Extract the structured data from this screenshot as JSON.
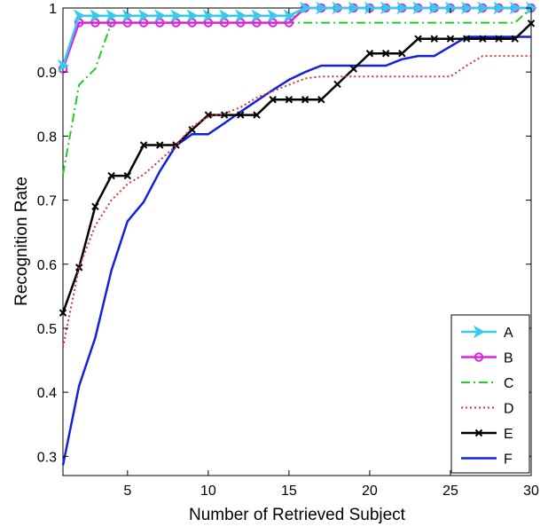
{
  "chart_data": {
    "type": "line",
    "title": "",
    "xlabel": "Number of Retrieved Subject",
    "ylabel": "Recognition Rate",
    "xlim": [
      1,
      30
    ],
    "ylim": [
      0.27,
      1.0
    ],
    "xticks": [
      5,
      10,
      15,
      20,
      25,
      30
    ],
    "xtick_labels": [
      "5",
      "10",
      "15",
      "20",
      "25",
      "30"
    ],
    "yticks": [
      0.3,
      0.4,
      0.5,
      0.6,
      0.7,
      0.8,
      0.9,
      1.0
    ],
    "ytick_labels": [
      "0.3",
      "0.4",
      "0.5",
      "0.6",
      "0.7",
      "0.8",
      "0.9",
      "1"
    ],
    "grid": false,
    "legend_position": "bottom-right",
    "series": [
      {
        "name": "A",
        "color": "#33ccee",
        "dash": "solid",
        "marker": "arrow-right",
        "x": [
          1,
          2,
          3,
          4,
          5,
          6,
          7,
          8,
          9,
          10,
          11,
          12,
          13,
          14,
          15,
          16,
          17,
          18,
          19,
          20,
          21,
          22,
          23,
          24,
          25,
          26,
          27,
          28,
          29,
          30
        ],
        "y": [
          0.91,
          0.988,
          0.988,
          0.988,
          0.988,
          0.988,
          0.988,
          0.988,
          0.988,
          0.988,
          0.988,
          0.988,
          0.988,
          0.988,
          0.988,
          1,
          1,
          1,
          1,
          1,
          1,
          1,
          1,
          1,
          1,
          1,
          1,
          1,
          1,
          1
        ]
      },
      {
        "name": "B",
        "color": "#dd22dd",
        "dash": "solid",
        "marker": "circle",
        "x": [
          1,
          2,
          3,
          4,
          5,
          6,
          7,
          8,
          9,
          10,
          11,
          12,
          13,
          14,
          15,
          16,
          17,
          18,
          19,
          20,
          21,
          22,
          23,
          24,
          25,
          26,
          27,
          28,
          29,
          30
        ],
        "y": [
          0.905,
          0.977,
          0.977,
          0.977,
          0.977,
          0.977,
          0.977,
          0.977,
          0.977,
          0.977,
          0.977,
          0.977,
          0.977,
          0.977,
          0.977,
          1,
          1,
          1,
          1,
          1,
          1,
          1,
          1,
          1,
          1,
          1,
          1,
          1,
          1,
          1
        ]
      },
      {
        "name": "C",
        "color": "#22cc22",
        "dash": "dashdot",
        "marker": "none",
        "x": [
          1,
          2,
          3,
          4,
          5,
          10,
          15,
          20,
          25,
          29,
          30
        ],
        "y": [
          0.74,
          0.88,
          0.905,
          0.977,
          0.977,
          0.977,
          0.977,
          0.977,
          0.977,
          0.977,
          1
        ]
      },
      {
        "name": "D",
        "color": "#dd3333",
        "dash": "dotted",
        "marker": "none",
        "x": [
          1,
          2,
          3,
          4,
          5,
          6,
          7,
          8,
          9,
          10,
          11,
          12,
          13,
          14,
          15,
          16,
          17,
          18,
          19,
          20,
          21,
          22,
          23,
          24,
          25,
          26,
          27,
          28,
          29,
          30
        ],
        "y": [
          0.47,
          0.595,
          0.66,
          0.7,
          0.725,
          0.74,
          0.762,
          0.785,
          0.815,
          0.83,
          0.835,
          0.845,
          0.86,
          0.87,
          0.88,
          0.89,
          0.893,
          0.893,
          0.893,
          0.893,
          0.893,
          0.893,
          0.893,
          0.893,
          0.893,
          0.91,
          0.925,
          0.925,
          0.925,
          0.925
        ]
      },
      {
        "name": "E",
        "color": "#000000",
        "dash": "solid",
        "marker": "x",
        "x": [
          1,
          2,
          3,
          4,
          5,
          6,
          7,
          8,
          9,
          10,
          11,
          12,
          13,
          14,
          15,
          16,
          17,
          18,
          19,
          20,
          21,
          22,
          23,
          24,
          25,
          26,
          27,
          28,
          29,
          30
        ],
        "y": [
          0.524,
          0.595,
          0.69,
          0.738,
          0.738,
          0.786,
          0.786,
          0.786,
          0.81,
          0.833,
          0.833,
          0.833,
          0.833,
          0.857,
          0.857,
          0.857,
          0.857,
          0.881,
          0.905,
          0.929,
          0.929,
          0.929,
          0.952,
          0.952,
          0.952,
          0.952,
          0.952,
          0.952,
          0.952,
          0.976
        ]
      },
      {
        "name": "F",
        "color": "#1122dd",
        "dash": "solid",
        "marker": "none",
        "x": [
          1,
          2,
          3,
          4,
          5,
          6,
          7,
          8,
          9,
          10,
          11,
          12,
          13,
          14,
          15,
          16,
          17,
          18,
          19,
          20,
          21,
          22,
          23,
          24,
          25,
          26,
          27,
          28,
          29,
          30
        ],
        "y": [
          0.286,
          0.41,
          0.485,
          0.59,
          0.667,
          0.697,
          0.745,
          0.785,
          0.803,
          0.803,
          0.82,
          0.838,
          0.855,
          0.872,
          0.888,
          0.9,
          0.91,
          0.91,
          0.91,
          0.91,
          0.91,
          0.92,
          0.925,
          0.925,
          0.94,
          0.955,
          0.955,
          0.955,
          0.955,
          0.955
        ]
      }
    ]
  }
}
